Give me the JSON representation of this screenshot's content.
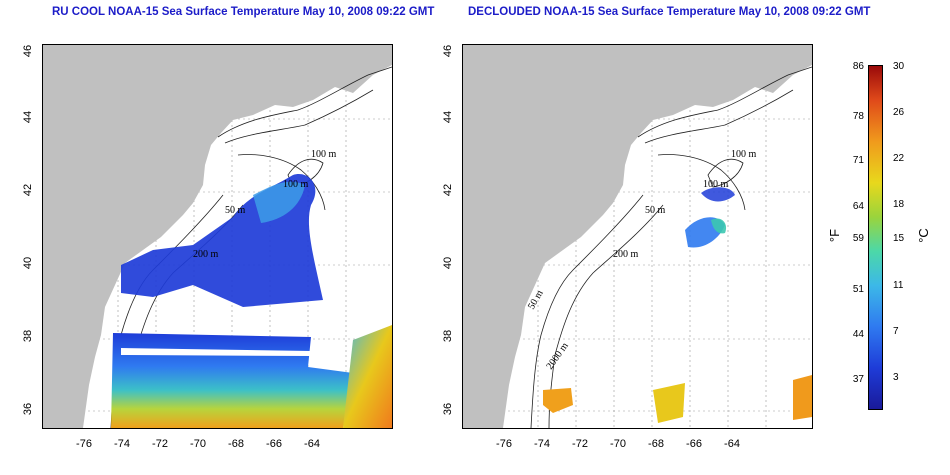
{
  "titles": {
    "left": "RU COOL NOAA-15 Sea Surface Temperature May 10, 2008 09:22 GMT",
    "right": "DECLOUDED NOAA-15 Sea Surface Temperature May 10, 2008 09:22 GMT"
  },
  "x_ticks": [
    "-76",
    "-74",
    "-72",
    "-70",
    "-68",
    "-66",
    "-64"
  ],
  "y_ticks": [
    "36",
    "38",
    "40",
    "42",
    "44",
    "46"
  ],
  "contour_labels": {
    "left": [
      "100 m",
      "100 m",
      "50 m",
      "200 m"
    ],
    "right": [
      "100 m",
      "100 m",
      "50 m",
      "200 m",
      "50 m",
      "2000 m"
    ]
  },
  "colorbar": {
    "f_ticks": [
      "86",
      "78",
      "71",
      "64",
      "59",
      "51",
      "44",
      "37"
    ],
    "c_ticks": [
      "30",
      "26",
      "22",
      "18",
      "15",
      "11",
      "7",
      "3"
    ],
    "f_unit": "°F",
    "c_unit": "°C"
  },
  "colors": {
    "title": "#1c1cc8",
    "land": "#c0c0c0",
    "cold": "#1e3cd8",
    "warm": "#f0a01c"
  }
}
